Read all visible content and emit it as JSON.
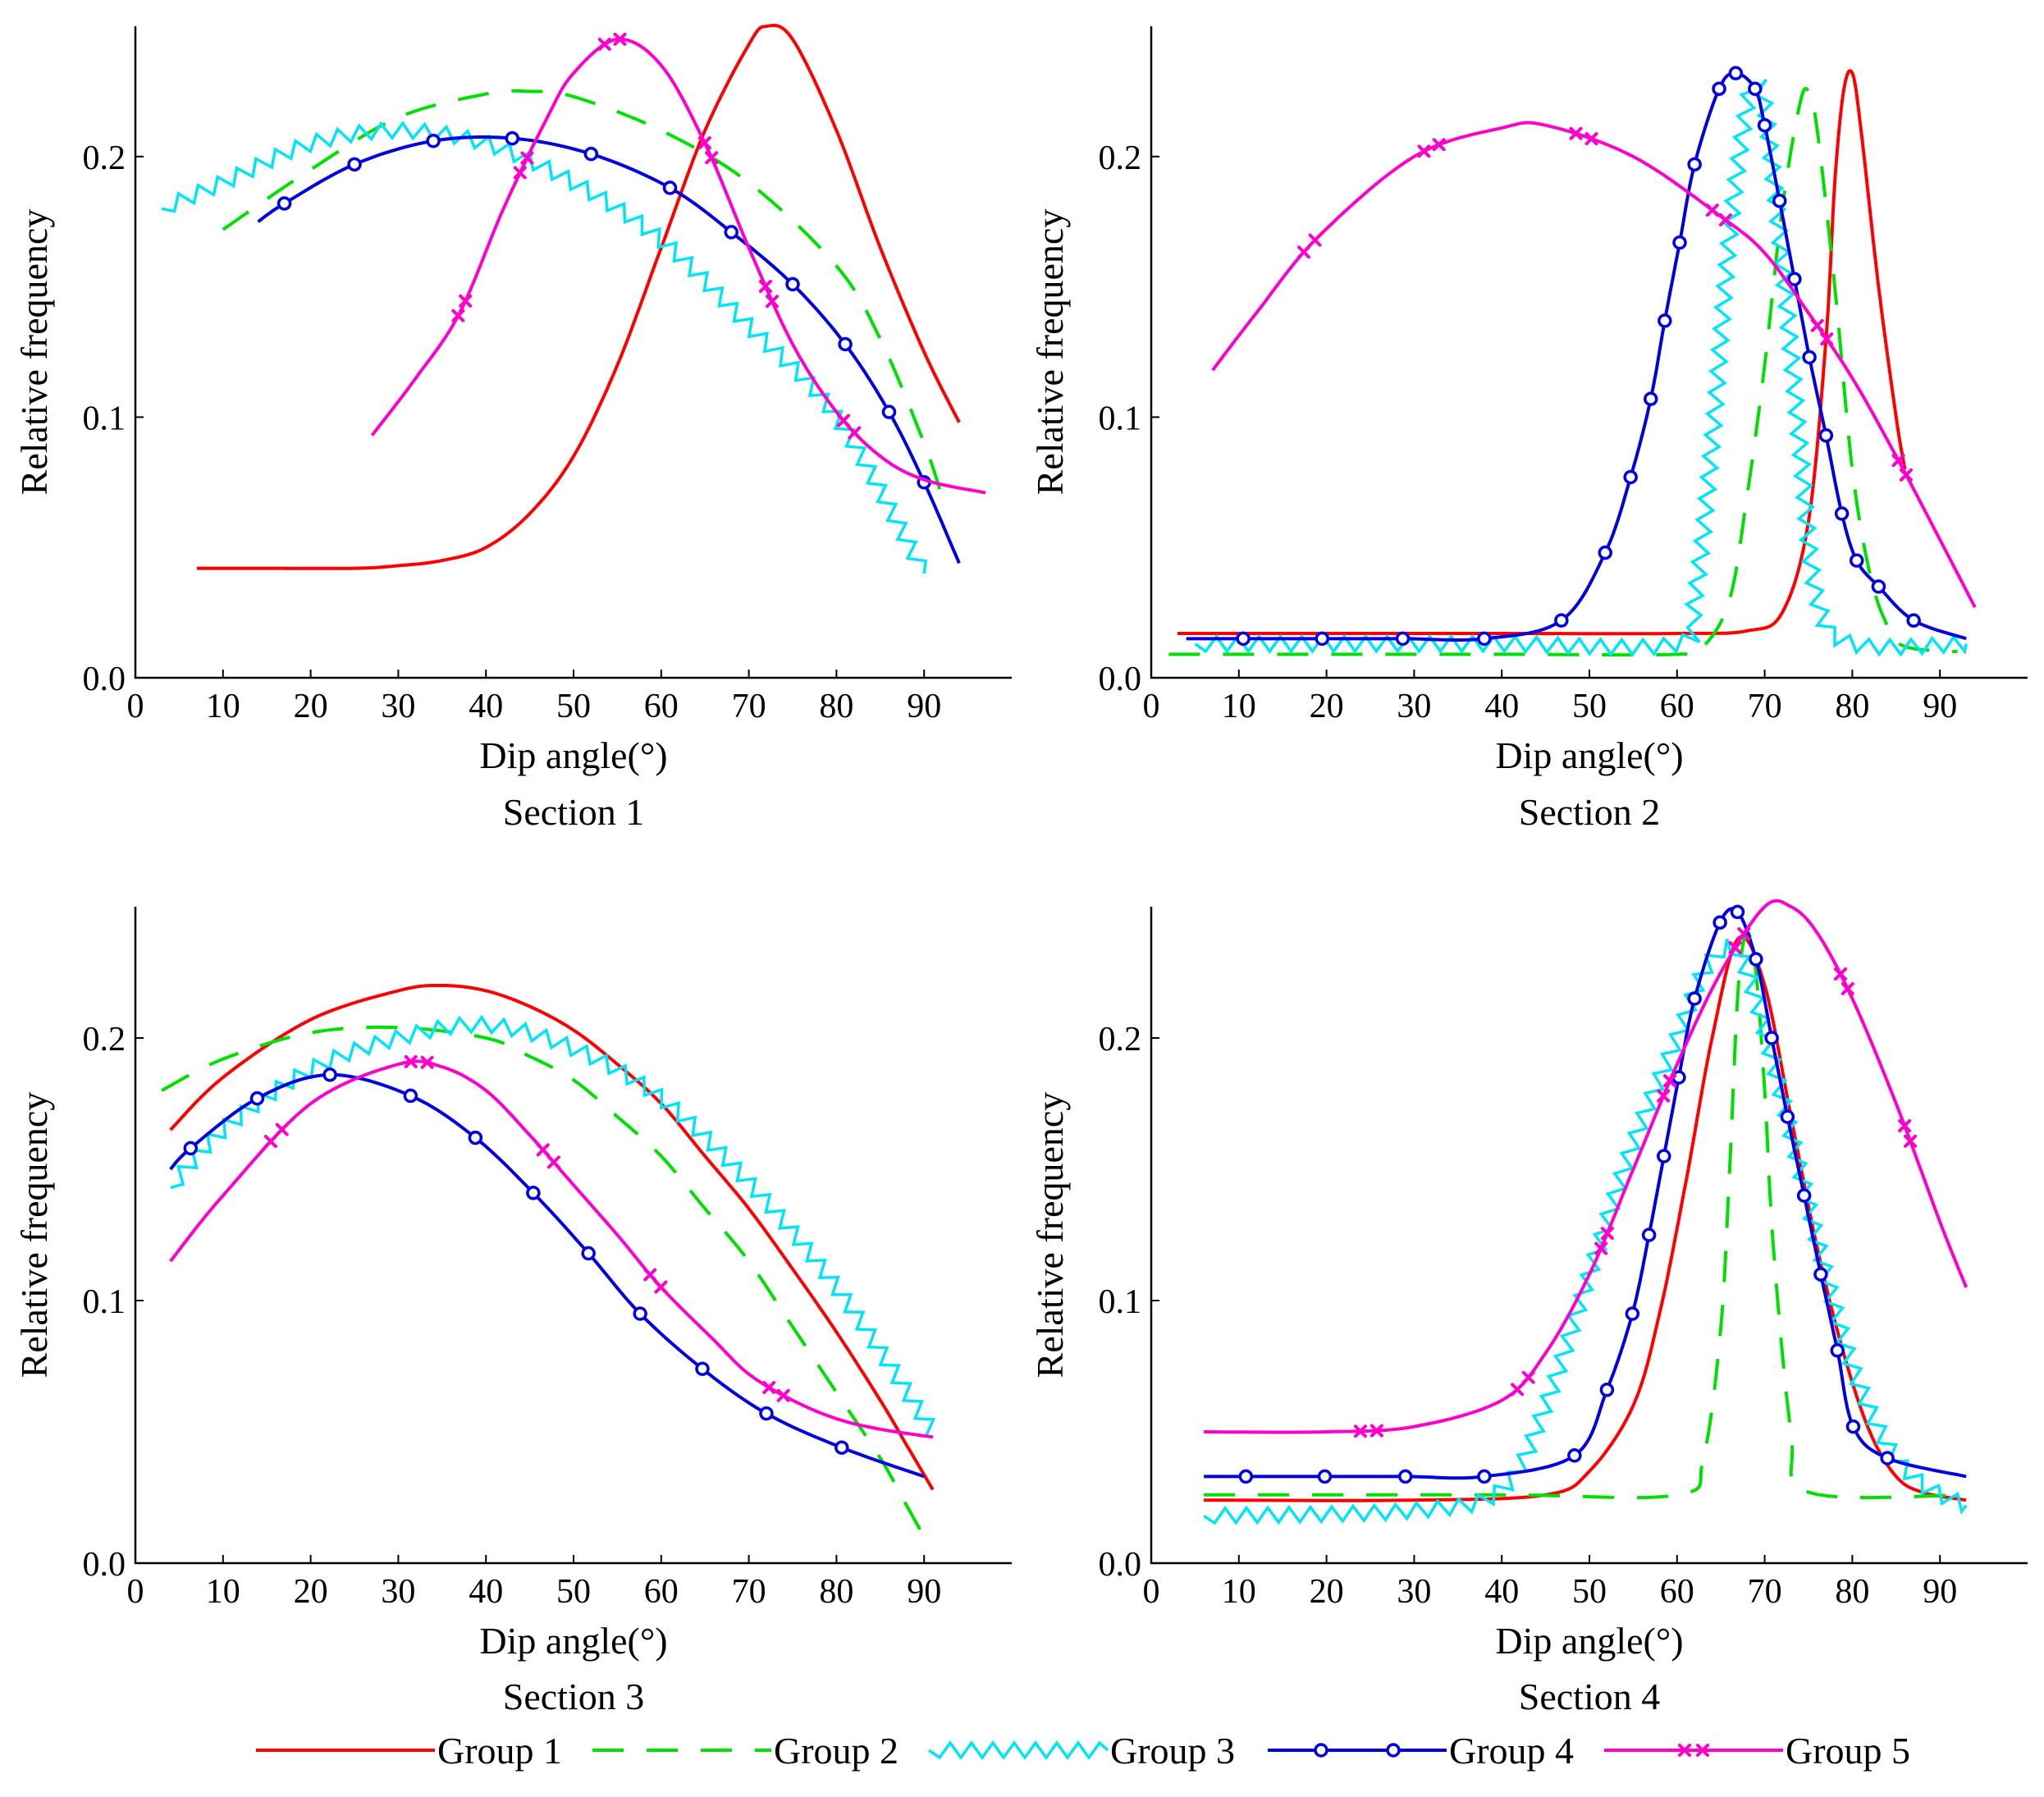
{
  "figure": {
    "xlabel": "Dip angle(°)",
    "ylabel": "Relative frequency",
    "series_colors": {
      "Group 1": "#ff0000",
      "Group 2": "#00e000",
      "Group 3": "#00e5f5",
      "Group 4": "#0000e0",
      "Group 5": "#ff00cc"
    }
  },
  "legend": {
    "entries": [
      {
        "name": "Group 1",
        "style": "solid"
      },
      {
        "name": "Group 2",
        "style": "dashed"
      },
      {
        "name": "Group 3",
        "style": "zigzag"
      },
      {
        "name": "Group 4",
        "style": "circle-markers"
      },
      {
        "name": "Group 5",
        "style": "x-markers"
      }
    ]
  },
  "chart_data": [
    {
      "type": "line",
      "title": "Section 1",
      "xlabel": "Dip angle(°)",
      "ylabel": "Relative frequency",
      "xlim": [
        0,
        100
      ],
      "ylim": [
        0,
        0.25
      ],
      "xticks": [
        "0",
        "10",
        "20",
        "30",
        "40",
        "50",
        "60",
        "70",
        "80",
        "90"
      ],
      "yticks": [
        "0.0",
        "0.1",
        "0.2"
      ],
      "series": [
        {
          "name": "Group 1",
          "x": [
            7,
            15,
            25,
            30,
            35,
            40,
            45,
            50,
            55,
            60,
            65,
            70,
            72,
            75,
            80,
            85,
            90,
            94
          ],
          "y": [
            0.042,
            0.042,
            0.042,
            0.043,
            0.045,
            0.05,
            0.063,
            0.085,
            0.12,
            0.165,
            0.21,
            0.243,
            0.25,
            0.245,
            0.21,
            0.165,
            0.125,
            0.098
          ]
        },
        {
          "name": "Group 2",
          "x": [
            10,
            20,
            30,
            40,
            45,
            50,
            60,
            70,
            80,
            85,
            90,
            92
          ],
          "y": [
            0.172,
            0.195,
            0.215,
            0.224,
            0.225,
            0.223,
            0.21,
            0.19,
            0.158,
            0.13,
            0.09,
            0.07
          ]
        },
        {
          "name": "Group 3",
          "x": [
            3,
            10,
            20,
            30,
            40,
            50,
            60,
            70,
            80,
            90
          ],
          "y": [
            0.18,
            0.19,
            0.205,
            0.21,
            0.205,
            0.19,
            0.168,
            0.135,
            0.1,
            0.04
          ]
        },
        {
          "name": "Group 4",
          "x": [
            14,
            17,
            25,
            34,
            43,
            52,
            61,
            68,
            75,
            81,
            86,
            90,
            94
          ],
          "y": [
            0.175,
            0.182,
            0.197,
            0.206,
            0.207,
            0.201,
            0.188,
            0.171,
            0.151,
            0.128,
            0.102,
            0.075,
            0.044
          ]
        },
        {
          "name": "Group 5",
          "x": [
            27,
            32,
            37,
            42,
            47,
            50,
            55,
            60,
            65,
            70,
            75,
            80,
            85,
            90,
            97
          ],
          "y": [
            0.093,
            0.115,
            0.14,
            0.18,
            0.215,
            0.232,
            0.245,
            0.235,
            0.205,
            0.165,
            0.128,
            0.102,
            0.085,
            0.076,
            0.071
          ]
        }
      ]
    },
    {
      "type": "line",
      "title": "Section 2",
      "xlabel": "Dip angle(°)",
      "ylabel": "Relative frequency",
      "xlim": [
        0,
        100
      ],
      "ylim": [
        0,
        0.25
      ],
      "xticks": [
        "0",
        "10",
        "20",
        "30",
        "40",
        "50",
        "60",
        "70",
        "80",
        "90"
      ],
      "yticks": [
        "0.0",
        "0.1",
        "0.2"
      ],
      "series": [
        {
          "name": "Group 1",
          "x": [
            3,
            20,
            40,
            60,
            68,
            72,
            75,
            77,
            78,
            79,
            80,
            81,
            83,
            85,
            86
          ],
          "y": [
            0.017,
            0.017,
            0.017,
            0.017,
            0.018,
            0.025,
            0.06,
            0.13,
            0.19,
            0.225,
            0.232,
            0.21,
            0.15,
            0.1,
            0.08
          ]
        },
        {
          "name": "Group 2",
          "x": [
            2,
            20,
            40,
            60,
            63,
            66,
            68,
            70,
            72,
            74,
            75,
            76,
            78,
            80,
            82,
            84,
            86,
            92
          ],
          "y": [
            0.009,
            0.009,
            0.009,
            0.009,
            0.012,
            0.03,
            0.07,
            0.12,
            0.18,
            0.22,
            0.225,
            0.21,
            0.15,
            0.08,
            0.04,
            0.02,
            0.012,
            0.01
          ]
        },
        {
          "name": "Group 3",
          "x": [
            5,
            20,
            40,
            60,
            62,
            64,
            66,
            68,
            69,
            70,
            72,
            74,
            76,
            80,
            93
          ],
          "y": [
            0.013,
            0.013,
            0.013,
            0.013,
            0.03,
            0.09,
            0.17,
            0.22,
            0.228,
            0.22,
            0.16,
            0.09,
            0.03,
            0.013,
            0.013
          ]
        },
        {
          "name": "Group 4",
          "x": [
            4,
            10.5,
            19.5,
            28.7,
            38,
            46.8,
            51.8,
            54.7,
            57,
            58.6,
            60.3,
            62,
            64.8,
            66.7,
            68.9,
            70,
            71.7,
            73.4,
            75.1,
            77,
            78.8,
            80.5,
            83,
            87,
            93
          ],
          "y": [
            0.015,
            0.015,
            0.015,
            0.015,
            0.015,
            0.022,
            0.048,
            0.077,
            0.107,
            0.137,
            0.167,
            0.197,
            0.226,
            0.232,
            0.226,
            0.212,
            0.183,
            0.153,
            0.123,
            0.093,
            0.063,
            0.045,
            0.035,
            0.022,
            0.015
          ]
        },
        {
          "name": "Group 5",
          "x": [
            7,
            12,
            19,
            30,
            40,
            45,
            55,
            65,
            70,
            75,
            80,
            85,
            90,
            94
          ],
          "y": [
            0.118,
            0.14,
            0.169,
            0.2,
            0.211,
            0.212,
            0.2,
            0.177,
            0.163,
            0.14,
            0.115,
            0.085,
            0.053,
            0.027
          ]
        }
      ]
    },
    {
      "type": "line",
      "title": "Section 3",
      "xlabel": "Dip angle(°)",
      "ylabel": "Relative frequency",
      "xlim": [
        0,
        100
      ],
      "ylim": [
        0,
        0.25
      ],
      "xticks": [
        "0",
        "10",
        "20",
        "30",
        "40",
        "50",
        "60",
        "70",
        "80",
        "90"
      ],
      "yticks": [
        "0.0",
        "0.1",
        "0.2"
      ],
      "series": [
        {
          "name": "Group 1",
          "x": [
            4,
            10,
            20,
            30,
            35,
            40,
            45,
            50,
            55,
            60,
            65,
            70,
            75,
            80,
            85,
            88,
            91
          ],
          "y": [
            0.165,
            0.185,
            0.207,
            0.218,
            0.22,
            0.218,
            0.212,
            0.203,
            0.19,
            0.175,
            0.155,
            0.135,
            0.112,
            0.088,
            0.062,
            0.045,
            0.028
          ]
        },
        {
          "name": "Group 2",
          "x": [
            3,
            10,
            20,
            30,
            40,
            45,
            50,
            55,
            60,
            65,
            70,
            75,
            80,
            85,
            88,
            90
          ],
          "y": [
            0.18,
            0.192,
            0.202,
            0.204,
            0.2,
            0.193,
            0.184,
            0.17,
            0.155,
            0.135,
            0.115,
            0.09,
            0.065,
            0.04,
            0.022,
            0.01
          ]
        },
        {
          "name": "Group 3",
          "x": [
            4,
            10,
            20,
            30,
            40,
            50,
            60,
            70,
            80,
            90,
            91
          ],
          "y": [
            0.143,
            0.165,
            0.188,
            0.2,
            0.205,
            0.196,
            0.177,
            0.145,
            0.105,
            0.055,
            0.048
          ]
        },
        {
          "name": "Group 4",
          "x": [
            4,
            6.3,
            13.9,
            22.2,
            31.4,
            38.8,
            45.4,
            51.7,
            57.6,
            64.7,
            72,
            80.6,
            90
          ],
          "y": [
            0.15,
            0.158,
            0.177,
            0.186,
            0.178,
            0.162,
            0.141,
            0.118,
            0.095,
            0.074,
            0.057,
            0.044,
            0.033
          ]
        },
        {
          "name": "Group 5",
          "x": [
            4,
            10,
            20,
            30,
            35,
            40,
            45,
            50,
            55,
            60,
            66,
            70,
            75,
            80,
            85,
            91
          ],
          "y": [
            0.115,
            0.14,
            0.175,
            0.19,
            0.189,
            0.18,
            0.163,
            0.144,
            0.125,
            0.105,
            0.085,
            0.072,
            0.062,
            0.055,
            0.051,
            0.048
          ]
        }
      ]
    },
    {
      "type": "line",
      "title": "Section 4",
      "xlabel": "Dip angle(°)",
      "ylabel": "Relative frequency",
      "xlim": [
        0,
        100
      ],
      "ylim": [
        0,
        0.25
      ],
      "xticks": [
        "0",
        "10",
        "20",
        "30",
        "40",
        "50",
        "60",
        "70",
        "80",
        "90"
      ],
      "yticks": [
        "0.0",
        "0.1",
        "0.2"
      ],
      "series": [
        {
          "name": "Group 1",
          "x": [
            6,
            30,
            45,
            50,
            55,
            58,
            61,
            64,
            67,
            70,
            73,
            76,
            79,
            82,
            85,
            88,
            93
          ],
          "y": [
            0.024,
            0.024,
            0.026,
            0.035,
            0.06,
            0.095,
            0.145,
            0.2,
            0.238,
            0.22,
            0.17,
            0.12,
            0.08,
            0.05,
            0.033,
            0.027,
            0.024
          ]
        },
        {
          "name": "Group 2",
          "x": [
            6,
            40,
            60,
            63,
            65,
            66,
            67,
            68,
            69,
            70,
            71,
            73,
            75,
            93
          ],
          "y": [
            0.026,
            0.026,
            0.026,
            0.04,
            0.09,
            0.15,
            0.22,
            0.24,
            0.225,
            0.18,
            0.12,
            0.05,
            0.027,
            0.026
          ]
        },
        {
          "name": "Group 3",
          "x": [
            6,
            30,
            40,
            45,
            50,
            55,
            60,
            63,
            66,
            68,
            71,
            74,
            77,
            80,
            84,
            88,
            93
          ],
          "y": [
            0.018,
            0.02,
            0.028,
            0.06,
            0.11,
            0.16,
            0.2,
            0.225,
            0.235,
            0.225,
            0.19,
            0.15,
            0.11,
            0.075,
            0.045,
            0.03,
            0.022
          ]
        },
        {
          "name": "Group 4",
          "x": [
            6,
            10.8,
            19.8,
            29,
            38,
            48.3,
            52,
            54.9,
            56.8,
            58.5,
            60.2,
            62,
            64.9,
            66.9,
            69,
            70.8,
            72.6,
            74.5,
            76.4,
            78.3,
            80.1,
            84,
            93
          ],
          "y": [
            0.033,
            0.033,
            0.033,
            0.033,
            0.033,
            0.041,
            0.066,
            0.095,
            0.125,
            0.155,
            0.185,
            0.215,
            0.244,
            0.248,
            0.23,
            0.2,
            0.17,
            0.14,
            0.11,
            0.081,
            0.052,
            0.04,
            0.033
          ]
        },
        {
          "name": "Group 5",
          "x": [
            6,
            20,
            30,
            40,
            45,
            50,
            55,
            60,
            65,
            70,
            73,
            76,
            80,
            85,
            90,
            93
          ],
          "y": [
            0.05,
            0.05,
            0.052,
            0.062,
            0.08,
            0.11,
            0.15,
            0.19,
            0.225,
            0.25,
            0.25,
            0.24,
            0.215,
            0.175,
            0.13,
            0.105
          ]
        }
      ]
    }
  ]
}
